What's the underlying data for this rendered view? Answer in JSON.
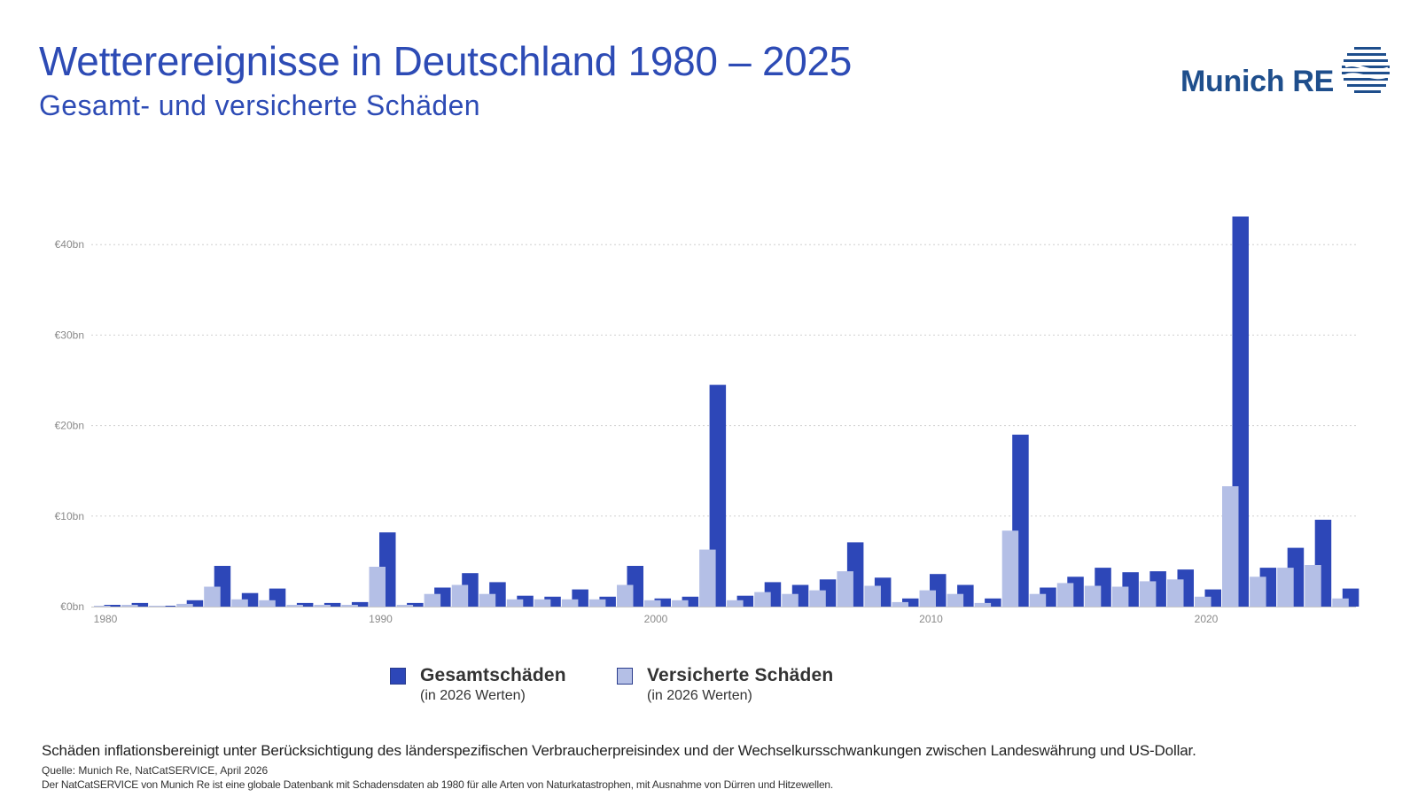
{
  "header": {
    "title": "Wetterereignisse in Deutschland 1980 – 2025",
    "subtitle": "Gesamt- und versicherte Schäden"
  },
  "logo": {
    "text": "Munich RE"
  },
  "chart_data": {
    "type": "bar",
    "x": [
      1980,
      1981,
      1982,
      1983,
      1984,
      1985,
      1986,
      1987,
      1988,
      1989,
      1990,
      1991,
      1992,
      1993,
      1994,
      1995,
      1996,
      1997,
      1998,
      1999,
      2000,
      2001,
      2002,
      2003,
      2004,
      2005,
      2006,
      2007,
      2008,
      2009,
      2010,
      2011,
      2012,
      2013,
      2014,
      2015,
      2016,
      2017,
      2018,
      2019,
      2020,
      2021,
      2022,
      2023,
      2024,
      2025
    ],
    "series": [
      {
        "name": "Versicherte Schäden",
        "note": "(in 2026 Werten)",
        "color": "#b4bfe6",
        "values": [
          0.1,
          0.2,
          0.1,
          0.3,
          2.2,
          0.8,
          0.7,
          0.2,
          0.2,
          0.2,
          4.4,
          0.2,
          1.4,
          2.4,
          1.4,
          0.8,
          0.8,
          0.8,
          0.8,
          2.4,
          0.7,
          0.7,
          6.3,
          0.7,
          1.6,
          1.4,
          1.8,
          3.9,
          2.3,
          0.5,
          1.8,
          1.4,
          0.4,
          8.4,
          1.4,
          2.6,
          2.3,
          2.2,
          2.8,
          3.0,
          1.1,
          13.3,
          3.3,
          4.3,
          4.6,
          0.9
        ]
      },
      {
        "name": "Gesamtschäden",
        "note": "(in 2026 Werten)",
        "color": "#2d47b8",
        "values": [
          0.2,
          0.4,
          0.1,
          0.7,
          4.5,
          1.5,
          2.0,
          0.4,
          0.4,
          0.5,
          8.2,
          0.4,
          2.1,
          3.7,
          2.7,
          1.2,
          1.1,
          1.9,
          1.1,
          4.5,
          0.9,
          1.1,
          24.5,
          1.2,
          2.7,
          2.4,
          3.0,
          7.1,
          3.2,
          0.9,
          3.6,
          2.4,
          0.9,
          19.0,
          2.1,
          3.3,
          4.3,
          3.8,
          3.9,
          4.1,
          1.9,
          43.1,
          4.3,
          6.5,
          9.6,
          2.0
        ]
      }
    ],
    "y_tick_labels": [
      "€0bn",
      "€10bn",
      "€20bn",
      "€30bn",
      "€40bn"
    ],
    "x_tick_labels": [
      "1980",
      "1990",
      "2000",
      "2010",
      "2020"
    ],
    "ylim": [
      0,
      47
    ],
    "grid": true,
    "legend_position": "bottom-center",
    "unit": "bn EUR"
  },
  "footnote": "Schäden inflationsbereinigt unter Berücksichtigung des länderspezifischen Verbraucherpreisindex und der Wechselkursschwankungen zwischen Landeswährung und US-Dollar.",
  "source": "Quelle: Munich Re, NatCatSERVICE, April 2026",
  "disclaimer": "Der NatCatSERVICE von Munich Re ist eine globale Datenbank mit Schadensdaten ab 1980 für alle Arten von Naturkatastrophen, mit Ausnahme von Dürren und Hitzewellen."
}
